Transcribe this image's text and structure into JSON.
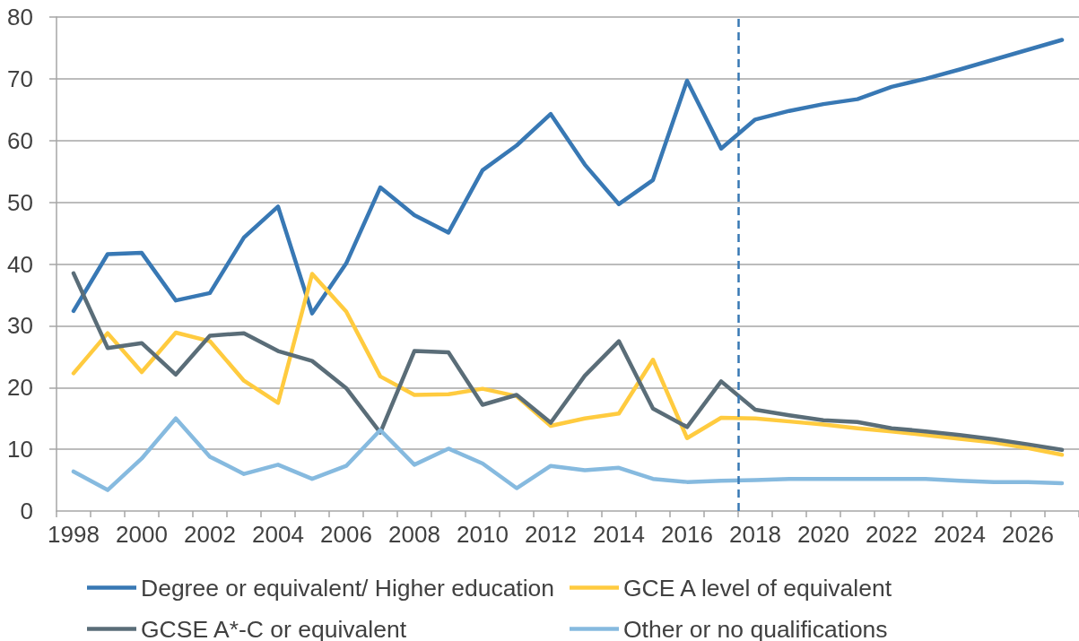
{
  "chart_data": {
    "type": "line",
    "x": [
      1998,
      1999,
      2000,
      2001,
      2002,
      2003,
      2004,
      2005,
      2006,
      2007,
      2008,
      2009,
      2010,
      2011,
      2012,
      2013,
      2014,
      2015,
      2016,
      2017,
      2018,
      2019,
      2020,
      2021,
      2022,
      2023,
      2024,
      2025,
      2026,
      2027
    ],
    "series": [
      {
        "name": "Degree or equivalent/ Higher education",
        "color": "#3878b4",
        "values": [
          32.4,
          41.6,
          41.8,
          34.1,
          35.3,
          44.3,
          49.3,
          32.0,
          40.1,
          52.4,
          47.9,
          45.1,
          55.2,
          59.2,
          64.3,
          56.1,
          49.7,
          53.6,
          69.7,
          58.7,
          63.4,
          64.8,
          65.9,
          66.7,
          68.7,
          70.0,
          71.5,
          73.1,
          74.7,
          76.3
        ]
      },
      {
        "name": "GCE A level of equivalent",
        "color": "#ffcb3f",
        "values": [
          22.3,
          28.8,
          22.5,
          28.9,
          27.5,
          21.1,
          17.5,
          38.4,
          32.3,
          21.8,
          18.8,
          18.9,
          19.8,
          18.6,
          13.8,
          15.0,
          15.8,
          24.5,
          11.8,
          15.1,
          15.0,
          14.5,
          14.0,
          13.4,
          12.9,
          12.3,
          11.7,
          11.1,
          10.2,
          9.1
        ]
      },
      {
        "name": "GCSE A*-C or equivalent",
        "color": "#5a6d78",
        "values": [
          38.5,
          26.4,
          27.2,
          22.1,
          28.4,
          28.8,
          25.9,
          24.3,
          19.9,
          12.7,
          25.9,
          25.7,
          17.2,
          18.8,
          14.3,
          21.9,
          27.5,
          16.6,
          13.6,
          21.0,
          16.4,
          15.5,
          14.7,
          14.4,
          13.4,
          12.9,
          12.3,
          11.6,
          10.8,
          9.9
        ]
      },
      {
        "name": "Other or no qualifications",
        "color": "#86badf",
        "values": [
          6.4,
          3.4,
          8.5,
          15.0,
          8.8,
          6.0,
          7.5,
          5.2,
          7.3,
          13.1,
          7.5,
          10.1,
          7.7,
          3.7,
          7.3,
          6.6,
          7.0,
          5.2,
          4.7,
          4.9,
          5.0,
          5.2,
          5.2,
          5.2,
          5.2,
          5.2,
          4.9,
          4.7,
          4.7,
          4.5
        ]
      }
    ],
    "xlim": [
      1997.5,
      2027.5
    ],
    "xticks": [
      {
        "value": 1997.5,
        "label": null
      },
      1998,
      {
        "value": 1998.5,
        "label": null
      },
      {
        "value": 1999.5,
        "label": null
      },
      2000,
      {
        "value": 2000.5,
        "label": null
      },
      {
        "value": 2001.5,
        "label": null
      },
      2002,
      {
        "value": 2002.5,
        "label": null
      },
      {
        "value": 2003.5,
        "label": null
      },
      2004,
      {
        "value": 2004.5,
        "label": null
      },
      {
        "value": 2005.5,
        "label": null
      },
      2006,
      {
        "value": 2006.5,
        "label": null
      },
      {
        "value": 2007.5,
        "label": null
      },
      2008,
      {
        "value": 2008.5,
        "label": null
      },
      {
        "value": 2009.5,
        "label": null
      },
      2010,
      {
        "value": 2010.5,
        "label": null
      },
      {
        "value": 2011.5,
        "label": null
      },
      2012,
      {
        "value": 2012.5,
        "label": null
      },
      {
        "value": 2013.5,
        "label": null
      },
      2014,
      {
        "value": 2014.5,
        "label": null
      },
      {
        "value": 2015.5,
        "label": null
      },
      2016,
      {
        "value": 2016.5,
        "label": null
      },
      {
        "value": 2017.5,
        "label": null
      },
      2018,
      {
        "value": 2018.5,
        "label": null
      },
      {
        "value": 2019.5,
        "label": null
      },
      2020,
      {
        "value": 2020.5,
        "label": null
      },
      {
        "value": 2021.5,
        "label": null
      },
      2022,
      {
        "value": 2022.5,
        "label": null
      },
      {
        "value": 2023.5,
        "label": null
      },
      2024,
      {
        "value": 2024.5,
        "label": null
      },
      {
        "value": 2025.5,
        "label": null
      },
      2026,
      {
        "value": 2026.5,
        "label": null
      },
      {
        "value": 2027.5,
        "label": null
      }
    ],
    "ylim": [
      0,
      80
    ],
    "yticks": [
      0,
      10,
      20,
      30,
      40,
      50,
      60,
      70,
      80
    ],
    "ref_lines": [
      {
        "axis": "x",
        "value": 2017.5,
        "color": "#3878b4",
        "line_style": "dashed"
      }
    ],
    "grid": "y",
    "legend": "bottom",
    "marker": "none",
    "line_style": "solid"
  }
}
